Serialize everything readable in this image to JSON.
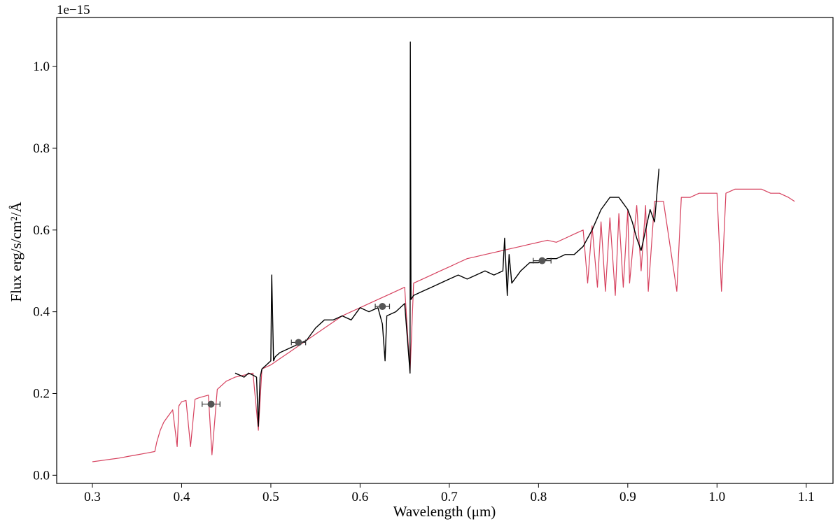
{
  "chart_data": {
    "type": "line",
    "xlabel": "Wavelength (μm)",
    "ylabel": "Flux erg/s/cm²/Å",
    "scale_label": "1e−15",
    "xlim": [
      0.26,
      1.13
    ],
    "ylim": [
      -0.02,
      1.12
    ],
    "grid": false,
    "x_ticks": [
      0.3,
      0.4,
      0.5,
      0.6,
      0.7,
      0.8,
      0.9,
      1.0,
      1.1
    ],
    "x_tick_labels": [
      "0.3",
      "0.4",
      "0.5",
      "0.6",
      "0.7",
      "0.8",
      "0.9",
      "1.0",
      "1.1"
    ],
    "y_ticks": [
      0.0,
      0.2,
      0.4,
      0.6,
      0.8,
      1.0
    ],
    "y_tick_labels": [
      "0.0",
      "0.2",
      "0.4",
      "0.6",
      "0.8",
      "1.0"
    ],
    "colors": {
      "model": "#d6415e",
      "observed": "#000000",
      "photometry": "#555555"
    },
    "series": [
      {
        "role": "model",
        "x": [
          0.3,
          0.31,
          0.32,
          0.33,
          0.34,
          0.35,
          0.36,
          0.37,
          0.372,
          0.376,
          0.38,
          0.385,
          0.39,
          0.395,
          0.397,
          0.4,
          0.405,
          0.41,
          0.415,
          0.42,
          0.425,
          0.43,
          0.434,
          0.44,
          0.45,
          0.46,
          0.47,
          0.48,
          0.486,
          0.49,
          0.5,
          0.51,
          0.52,
          0.53,
          0.54,
          0.55,
          0.56,
          0.57,
          0.58,
          0.59,
          0.6,
          0.61,
          0.62,
          0.63,
          0.64,
          0.65,
          0.656,
          0.66,
          0.67,
          0.68,
          0.69,
          0.7,
          0.71,
          0.72,
          0.73,
          0.74,
          0.75,
          0.76,
          0.77,
          0.78,
          0.79,
          0.8,
          0.81,
          0.82,
          0.83,
          0.84,
          0.85,
          0.855,
          0.86,
          0.866,
          0.87,
          0.875,
          0.88,
          0.886,
          0.89,
          0.895,
          0.9,
          0.902,
          0.91,
          0.915,
          0.92,
          0.923,
          0.93,
          0.94,
          0.955,
          0.96,
          0.97,
          0.98,
          0.99,
          1.0,
          1.005,
          1.01,
          1.02,
          1.03,
          1.04,
          1.05,
          1.06,
          1.07,
          1.08,
          1.087
        ],
        "y": [
          0.033,
          0.036,
          0.039,
          0.042,
          0.046,
          0.05,
          0.054,
          0.058,
          0.08,
          0.11,
          0.13,
          0.145,
          0.16,
          0.07,
          0.17,
          0.18,
          0.183,
          0.07,
          0.186,
          0.19,
          0.193,
          0.196,
          0.05,
          0.21,
          0.23,
          0.24,
          0.245,
          0.25,
          0.11,
          0.26,
          0.27,
          0.285,
          0.3,
          0.315,
          0.33,
          0.345,
          0.36,
          0.375,
          0.39,
          0.4,
          0.41,
          0.42,
          0.43,
          0.44,
          0.45,
          0.46,
          0.25,
          0.47,
          0.48,
          0.49,
          0.5,
          0.51,
          0.52,
          0.53,
          0.535,
          0.54,
          0.545,
          0.55,
          0.555,
          0.56,
          0.565,
          0.57,
          0.575,
          0.57,
          0.58,
          0.59,
          0.6,
          0.47,
          0.61,
          0.46,
          0.62,
          0.45,
          0.63,
          0.44,
          0.64,
          0.46,
          0.65,
          0.47,
          0.66,
          0.5,
          0.66,
          0.45,
          0.67,
          0.67,
          0.45,
          0.68,
          0.68,
          0.69,
          0.69,
          0.69,
          0.45,
          0.69,
          0.7,
          0.7,
          0.7,
          0.7,
          0.69,
          0.69,
          0.68,
          0.67
        ]
      },
      {
        "role": "observed",
        "x": [
          0.46,
          0.465,
          0.47,
          0.475,
          0.48,
          0.484,
          0.486,
          0.488,
          0.49,
          0.495,
          0.5,
          0.501,
          0.503,
          0.505,
          0.51,
          0.52,
          0.53,
          0.54,
          0.55,
          0.56,
          0.57,
          0.58,
          0.59,
          0.6,
          0.61,
          0.62,
          0.625,
          0.628,
          0.63,
          0.64,
          0.65,
          0.656,
          0.6563,
          0.657,
          0.66,
          0.67,
          0.68,
          0.69,
          0.7,
          0.71,
          0.72,
          0.73,
          0.74,
          0.75,
          0.76,
          0.762,
          0.765,
          0.767,
          0.77,
          0.78,
          0.79,
          0.8,
          0.81,
          0.82,
          0.83,
          0.84,
          0.85,
          0.86,
          0.87,
          0.88,
          0.89,
          0.9,
          0.905,
          0.91,
          0.915,
          0.92,
          0.925,
          0.93,
          0.935
        ],
        "y": [
          0.25,
          0.245,
          0.24,
          0.25,
          0.245,
          0.24,
          0.12,
          0.24,
          0.26,
          0.27,
          0.28,
          0.49,
          0.28,
          0.29,
          0.3,
          0.31,
          0.32,
          0.33,
          0.36,
          0.38,
          0.38,
          0.39,
          0.38,
          0.41,
          0.4,
          0.41,
          0.37,
          0.28,
          0.39,
          0.4,
          0.42,
          0.25,
          1.06,
          0.43,
          0.44,
          0.45,
          0.46,
          0.47,
          0.48,
          0.49,
          0.48,
          0.49,
          0.5,
          0.49,
          0.5,
          0.58,
          0.44,
          0.54,
          0.47,
          0.5,
          0.52,
          0.52,
          0.53,
          0.53,
          0.54,
          0.54,
          0.56,
          0.6,
          0.65,
          0.68,
          0.68,
          0.65,
          0.62,
          0.58,
          0.55,
          0.6,
          0.65,
          0.62,
          0.75
        ]
      }
    ],
    "photometry": [
      {
        "x": 0.433,
        "y": 0.174,
        "xerr": 0.01
      },
      {
        "x": 0.531,
        "y": 0.325,
        "xerr": 0.008
      },
      {
        "x": 0.625,
        "y": 0.413,
        "xerr": 0.008
      },
      {
        "x": 0.804,
        "y": 0.525,
        "xerr": 0.01
      }
    ]
  }
}
